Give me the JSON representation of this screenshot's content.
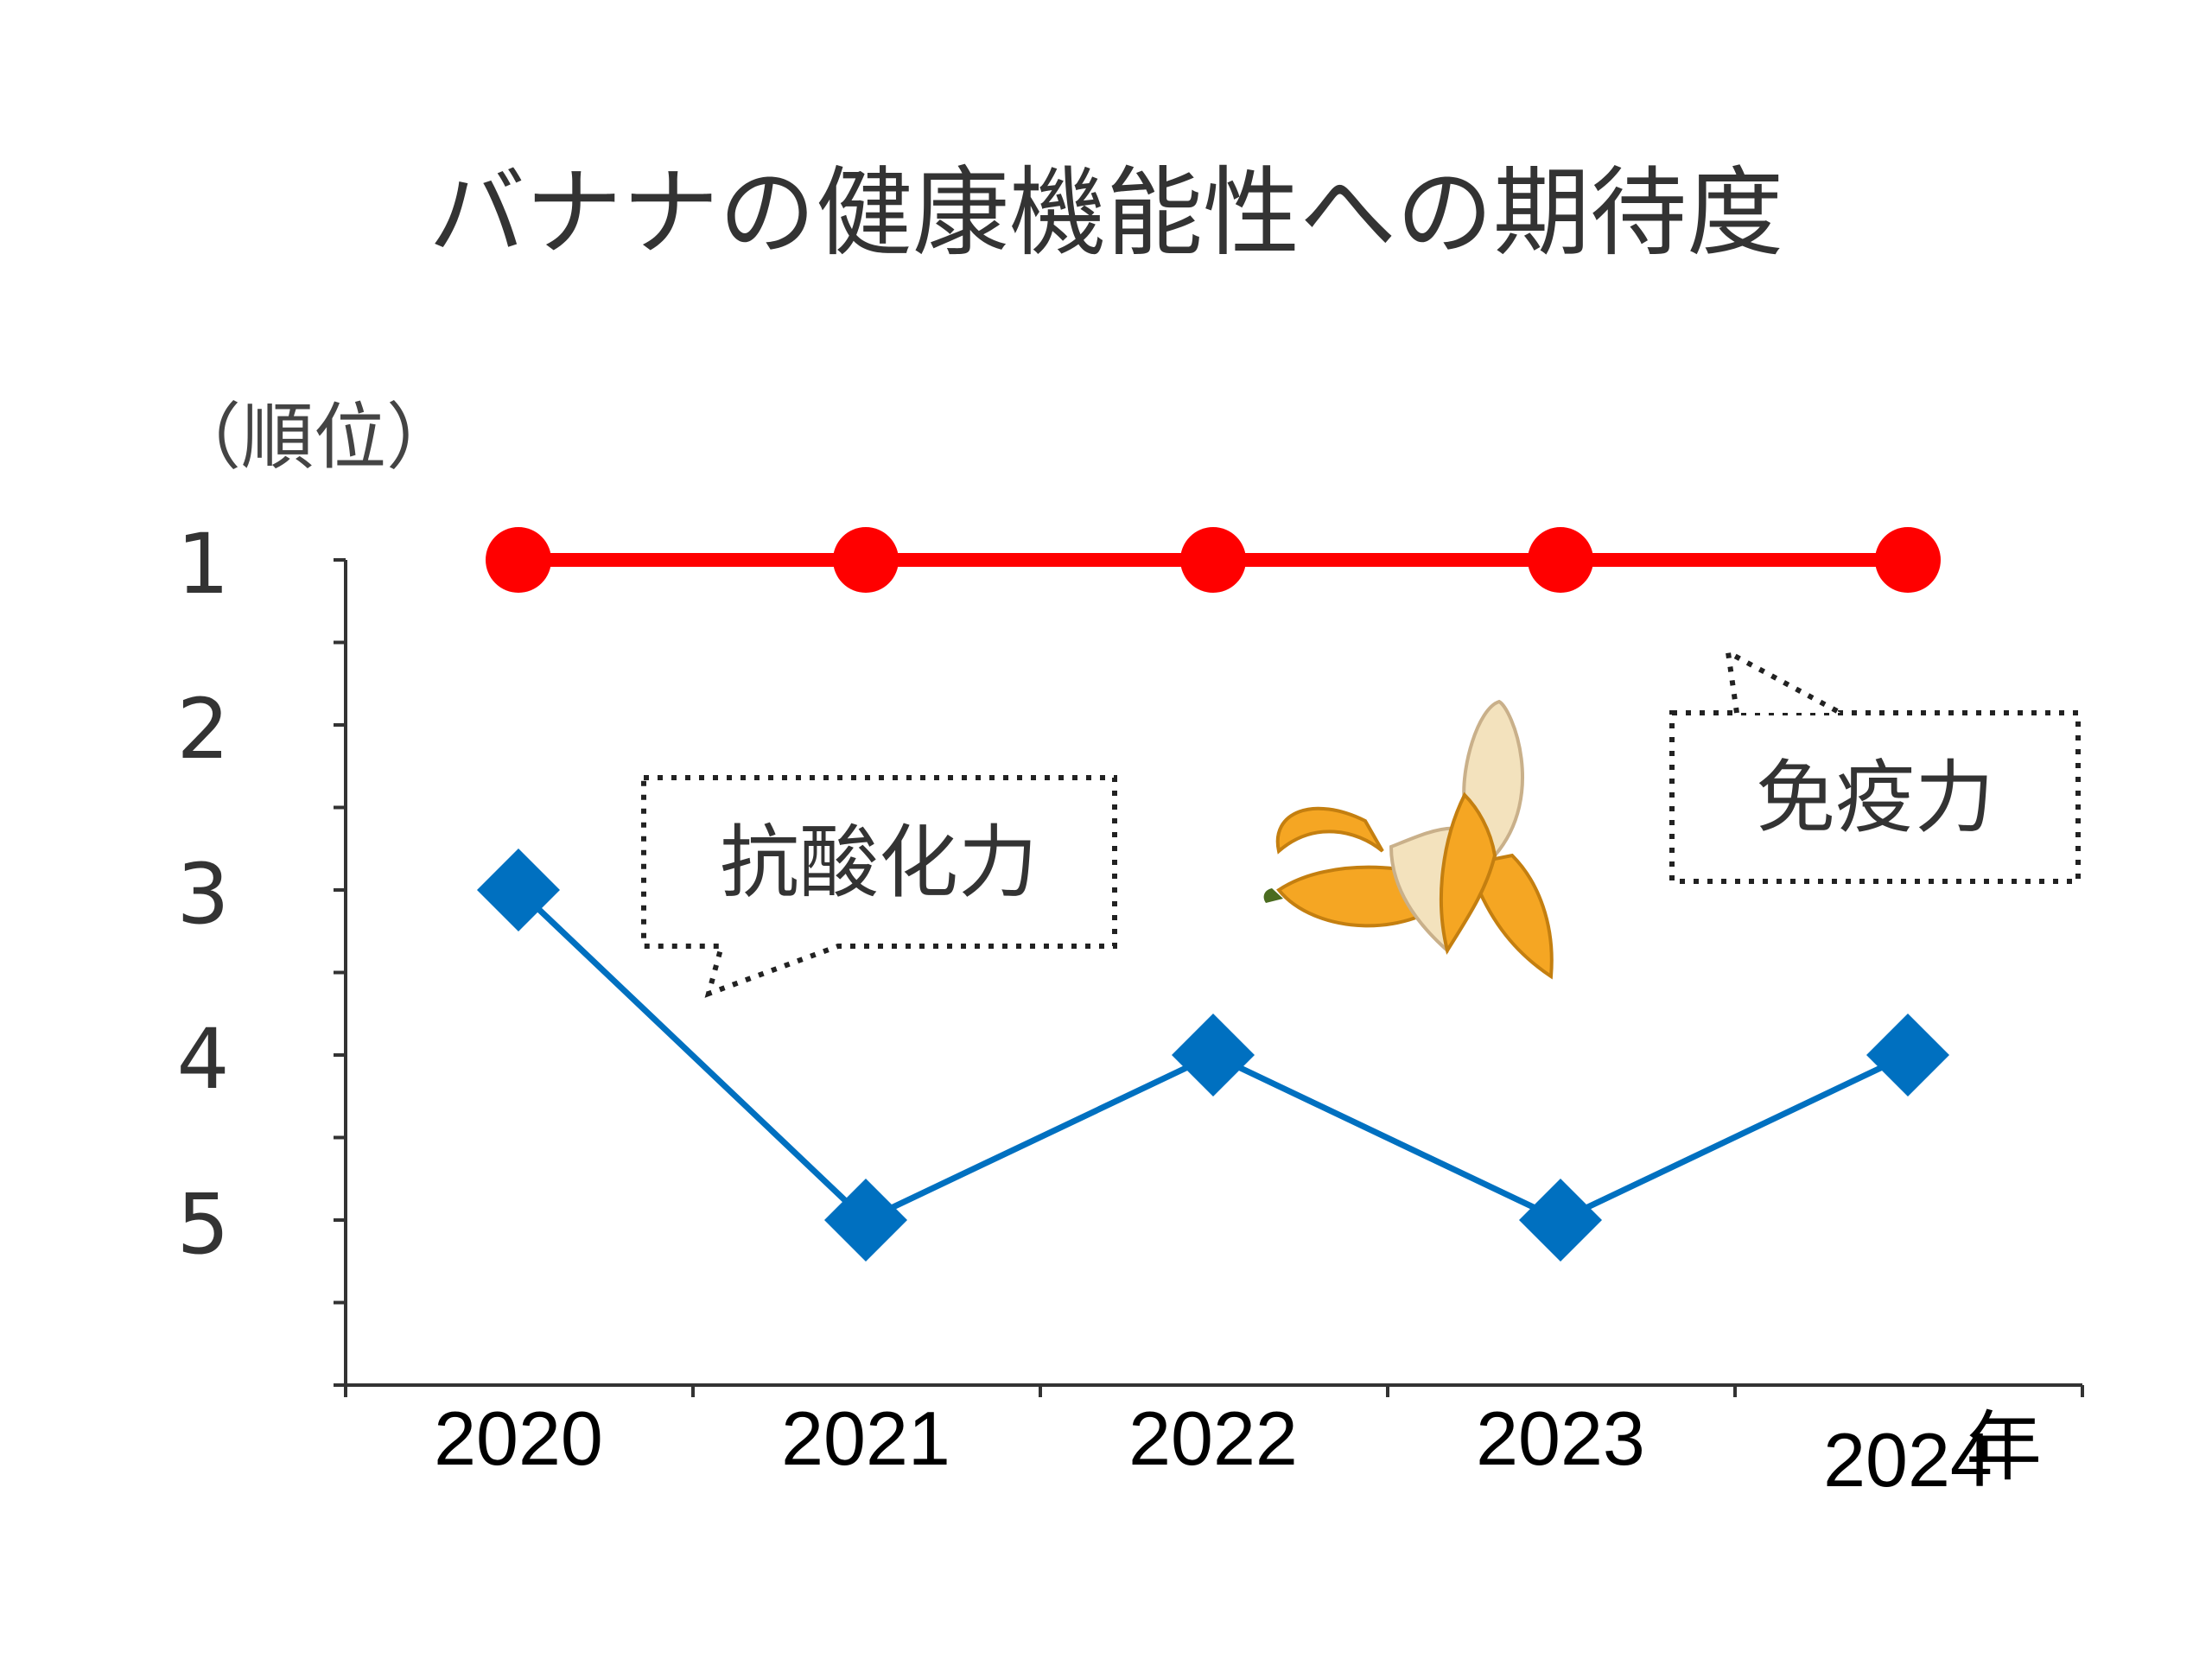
{
  "chart_data": {
    "type": "line",
    "title": "バナナの健康機能性への期待度",
    "ylabel": "（順位）",
    "xlabel": "年",
    "categories": [
      "2020",
      "2021",
      "2022",
      "2023",
      "2024"
    ],
    "ylim": [
      1,
      6
    ],
    "y_inverted": true,
    "yticks": [
      "1",
      "2",
      "3",
      "4",
      "5"
    ],
    "grid": false,
    "series": [
      {
        "name": "免疫力",
        "values": [
          1,
          1,
          1,
          1,
          1
        ],
        "color": "#ff0000",
        "marker": "circle"
      },
      {
        "name": "抗酸化力",
        "values": [
          3,
          5,
          4,
          5,
          4
        ],
        "color": "#0070c0",
        "marker": "diamond"
      }
    ],
    "annotations": [
      "抗酸化力",
      "免疫力"
    ]
  },
  "decoration": {
    "icon": "peeled-banana-icon"
  }
}
